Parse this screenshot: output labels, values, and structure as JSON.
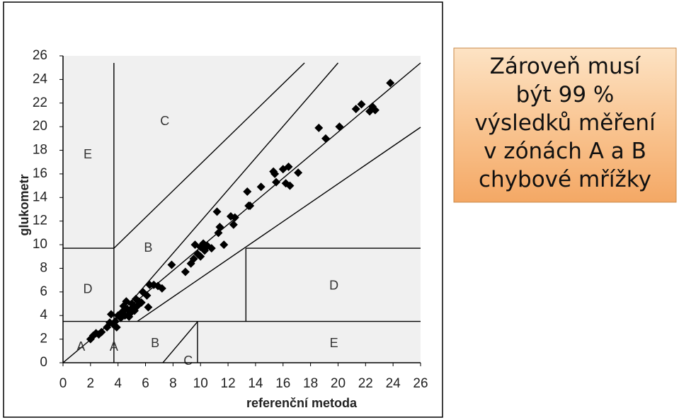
{
  "chart_data": {
    "type": "scatter",
    "x_label": "referenční metoda",
    "y_label": "glukometr",
    "xlim": [
      0,
      26
    ],
    "ylim": [
      0,
      26
    ],
    "xticks": [
      0,
      2,
      4,
      6,
      8,
      10,
      12,
      14,
      16,
      18,
      20,
      22,
      24,
      26
    ],
    "yticks": [
      0,
      2,
      4,
      6,
      8,
      10,
      12,
      14,
      16,
      18,
      20,
      22,
      24,
      26
    ],
    "zones": [
      "C",
      "E",
      "B",
      "D",
      "A",
      "A",
      "B",
      "C",
      "D",
      "E"
    ],
    "color": "#000000",
    "x": [
      2.0,
      2.2,
      2.4,
      2.6,
      2.8,
      3.2,
      3.4,
      3.5,
      3.7,
      3.8,
      3.9,
      4.0,
      4.2,
      4.3,
      4.4,
      4.5,
      4.6,
      4.7,
      4.8,
      4.9,
      5.0,
      5.0,
      5.2,
      5.3,
      5.4,
      5.5,
      5.7,
      5.8,
      6.1,
      6.2,
      6.3,
      6.6,
      6.9,
      7.2,
      7.9,
      8.9,
      9.3,
      9.5,
      9.6,
      9.8,
      10.0,
      10.0,
      10.2,
      10.3,
      10.5,
      10.8,
      11.2,
      11.3,
      11.4,
      11.7,
      12.2,
      12.4,
      12.5,
      13.4,
      13.5,
      13.6,
      14.4,
      15.3,
      15.4,
      15.5,
      16.0,
      16.2,
      16.4,
      16.5,
      17.1,
      18.6,
      19.1,
      20.1,
      21.3,
      21.7,
      22.3,
      22.5,
      22.7,
      23.8
    ],
    "values": [
      2.0,
      2.3,
      2.5,
      2.4,
      2.6,
      3.0,
      3.4,
      4.1,
      3.2,
      3.5,
      3.0,
      4.0,
      3.8,
      4.3,
      4.8,
      4.0,
      5.2,
      4.5,
      3.9,
      4.2,
      4.6,
      5.0,
      4.4,
      5.4,
      4.8,
      5.2,
      5.1,
      6.0,
      5.7,
      4.7,
      6.6,
      6.6,
      6.5,
      6.3,
      8.3,
      7.7,
      8.4,
      8.8,
      10.0,
      9.2,
      9.0,
      9.8,
      10.1,
      9.5,
      9.9,
      9.7,
      12.8,
      11.0,
      11.5,
      10.0,
      12.4,
      11.7,
      12.3,
      14.5,
      13.3,
      13.3,
      14.9,
      16.2,
      16.0,
      15.3,
      16.4,
      15.2,
      16.6,
      15.0,
      16.1,
      19.9,
      19.0,
      20.0,
      21.5,
      21.9,
      21.3,
      21.7,
      21.4,
      23.7
    ]
  },
  "callout": {
    "lines": [
      "Zároveň musí",
      "být 99 %",
      "výsledků měření",
      "v zónách A a B",
      "chybové mřížky"
    ]
  }
}
